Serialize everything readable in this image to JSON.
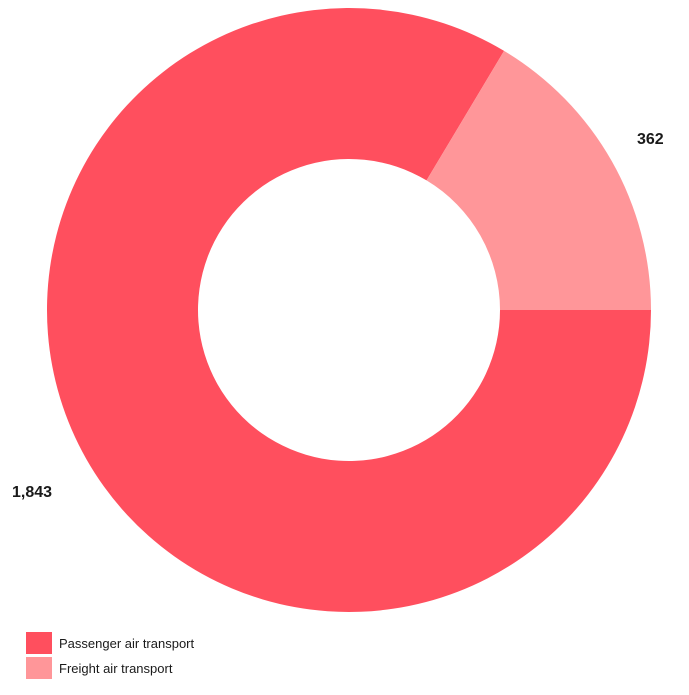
{
  "chart_data": {
    "type": "pie",
    "title": "",
    "categories": [
      "Passenger air transport",
      "Freight air transport"
    ],
    "values": [
      1843,
      362
    ],
    "data_labels": [
      "1,843",
      "362"
    ],
    "colors": [
      "#ff4f5e",
      "#ff9699"
    ],
    "donut": true,
    "legend_position": "bottom-left"
  }
}
